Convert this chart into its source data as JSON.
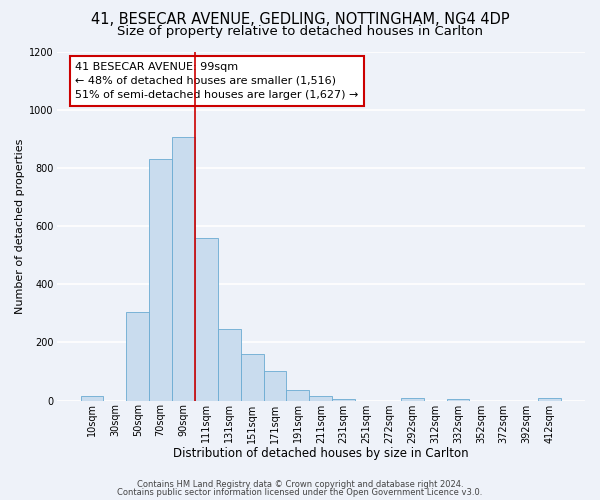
{
  "title": "41, BESECAR AVENUE, GEDLING, NOTTINGHAM, NG4 4DP",
  "subtitle": "Size of property relative to detached houses in Carlton",
  "xlabel": "Distribution of detached houses by size in Carlton",
  "ylabel": "Number of detached properties",
  "bin_labels": [
    "10sqm",
    "30sqm",
    "50sqm",
    "70sqm",
    "90sqm",
    "111sqm",
    "131sqm",
    "151sqm",
    "171sqm",
    "191sqm",
    "211sqm",
    "231sqm",
    "251sqm",
    "272sqm",
    "292sqm",
    "312sqm",
    "332sqm",
    "352sqm",
    "372sqm",
    "392sqm",
    "412sqm"
  ],
  "bar_heights": [
    15,
    0,
    305,
    830,
    905,
    560,
    245,
    160,
    100,
    35,
    15,
    5,
    0,
    0,
    10,
    0,
    5,
    0,
    0,
    0,
    10
  ],
  "bar_color": "#c9dcee",
  "bar_edgecolor": "#6aabd2",
  "property_line_bin": 4.5,
  "annotation_title": "41 BESECAR AVENUE: 99sqm",
  "annotation_line1": "← 48% of detached houses are smaller (1,516)",
  "annotation_line2": "51% of semi-detached houses are larger (1,627) →",
  "annotation_box_color": "#ffffff",
  "annotation_border_color": "#cc0000",
  "vline_color": "#cc0000",
  "ylim": [
    0,
    1200
  ],
  "yticks": [
    0,
    200,
    400,
    600,
    800,
    1000,
    1200
  ],
  "footer1": "Contains HM Land Registry data © Crown copyright and database right 2024.",
  "footer2": "Contains public sector information licensed under the Open Government Licence v3.0.",
  "background_color": "#eef2f9",
  "plot_background": "#eef2f9",
  "grid_color": "#ffffff",
  "title_fontsize": 10.5,
  "subtitle_fontsize": 9.5,
  "xlabel_fontsize": 8.5,
  "ylabel_fontsize": 8.0,
  "tick_fontsize": 7.0,
  "annotation_fontsize": 8.0,
  "footer_fontsize": 6.0
}
